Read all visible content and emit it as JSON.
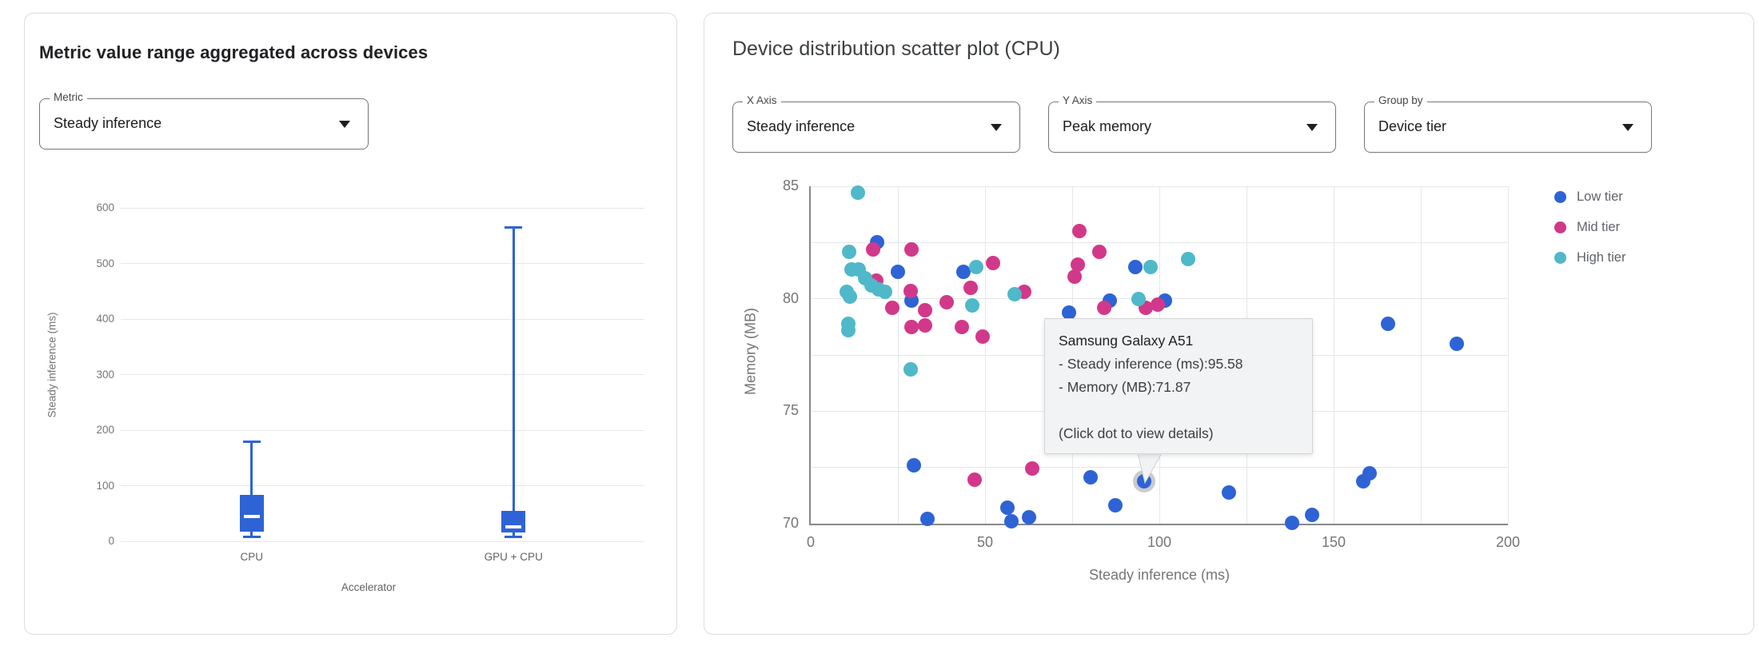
{
  "left_panel": {
    "title": "Metric value range aggregated across devices",
    "metric_select": {
      "label": "Metric",
      "value": "Steady inference"
    },
    "chart_data": {
      "type": "boxplot",
      "categories": [
        "CPU",
        "GPU + CPU"
      ],
      "xlabel": "Accelerator",
      "ylabel": "Steady inference (ms)",
      "ylim": [
        0,
        620
      ],
      "yticks": [
        0,
        100,
        200,
        300,
        400,
        500,
        600
      ],
      "grid": true,
      "box_color": "#2e63d6",
      "boxes": [
        {
          "category": "CPU",
          "min": 8,
          "q1": 17,
          "median": 44,
          "q3": 84,
          "max": 180
        },
        {
          "category": "GPU + CPU",
          "min": 8,
          "q1": 16,
          "median": 26,
          "q3": 54,
          "max": 565
        }
      ]
    }
  },
  "right_panel": {
    "title": "Device distribution scatter plot (CPU)",
    "x_axis_select": {
      "label": "X Axis",
      "value": "Steady inference"
    },
    "y_axis_select": {
      "label": "Y Axis",
      "value": "Peak memory"
    },
    "group_by_select": {
      "label": "Group by",
      "value": "Device tier"
    },
    "chart_data": {
      "type": "scatter",
      "xlabel": "Steady inference (ms)",
      "ylabel": "Memory (MB)",
      "xlim": [
        0,
        200
      ],
      "ylim": [
        70,
        85
      ],
      "xticks": [
        0,
        50,
        100,
        150,
        200
      ],
      "yticks": [
        70,
        75,
        80,
        85
      ],
      "grid": true,
      "legend_position": "right",
      "series": [
        {
          "name": "Low tier",
          "color": "#2e63d6",
          "points": [
            [
              19.1,
              82.5
            ],
            [
              25.1,
              81.2
            ],
            [
              29,
              79.9
            ],
            [
              43.8,
              81.2
            ],
            [
              74,
              79.4
            ],
            [
              85.7,
              79.9
            ],
            [
              93.1,
              81.4
            ],
            [
              101.6,
              79.9
            ],
            [
              29.6,
              72.6
            ],
            [
              33.5,
              70.2
            ],
            [
              56.5,
              70.7
            ],
            [
              57.5,
              70.1
            ],
            [
              62.5,
              70.3
            ],
            [
              80.3,
              72.05
            ],
            [
              95.58,
              71.87
            ],
            [
              87.3,
              70.8
            ],
            [
              120,
              71.4
            ],
            [
              138.1,
              70.05
            ],
            [
              143.9,
              70.4
            ],
            [
              158.4,
              71.9
            ],
            [
              160.4,
              72.25
            ],
            [
              165.7,
              78.9
            ],
            [
              185.3,
              78.0
            ]
          ]
        },
        {
          "name": "Mid tier",
          "color": "#d23889",
          "points": [
            [
              18,
              82.2
            ],
            [
              28.8,
              82.2
            ],
            [
              18.9,
              80.8
            ],
            [
              28.6,
              80.35
            ],
            [
              23.3,
              79.6
            ],
            [
              32.7,
              79.5
            ],
            [
              38.9,
              79.85
            ],
            [
              45.9,
              80.5
            ],
            [
              52.3,
              81.6
            ],
            [
              61.3,
              80.3
            ],
            [
              29,
              78.75
            ],
            [
              32.9,
              78.8
            ],
            [
              43.3,
              78.75
            ],
            [
              49.3,
              78.3
            ],
            [
              77,
              83.0
            ],
            [
              76.7,
              81.5
            ],
            [
              75.8,
              81.0
            ],
            [
              82.7,
              82.1
            ],
            [
              84.1,
              79.6
            ],
            [
              96.1,
              79.6
            ],
            [
              99.5,
              79.75
            ],
            [
              47,
              71.95
            ],
            [
              63.5,
              72.45
            ]
          ]
        },
        {
          "name": "High tier",
          "color": "#4fb8c9",
          "points": [
            [
              13.6,
              84.7
            ],
            [
              11,
              82.1
            ],
            [
              11.8,
              81.3
            ],
            [
              13.8,
              81.3
            ],
            [
              15.7,
              80.9
            ],
            [
              17.5,
              80.6
            ],
            [
              19.4,
              80.4
            ],
            [
              21.4,
              80.3
            ],
            [
              10.4,
              80.3
            ],
            [
              11.3,
              80.1
            ],
            [
              10.8,
              78.9
            ],
            [
              10.8,
              78.6
            ],
            [
              28.6,
              76.85
            ],
            [
              47.5,
              81.4
            ],
            [
              46.3,
              79.7
            ],
            [
              58.5,
              80.2
            ],
            [
              94,
              80.0
            ],
            [
              97.5,
              81.4
            ],
            [
              108.2,
              81.75
            ]
          ]
        }
      ],
      "highlighted_point": {
        "series": "Low tier",
        "x": 95.58,
        "y": 71.87
      }
    },
    "tooltip": {
      "title": "Samsung Galaxy A51",
      "lines": [
        "- Steady inference (ms):95.58",
        "- Memory (MB):71.87"
      ],
      "hint": "(Click dot to view details)"
    }
  }
}
